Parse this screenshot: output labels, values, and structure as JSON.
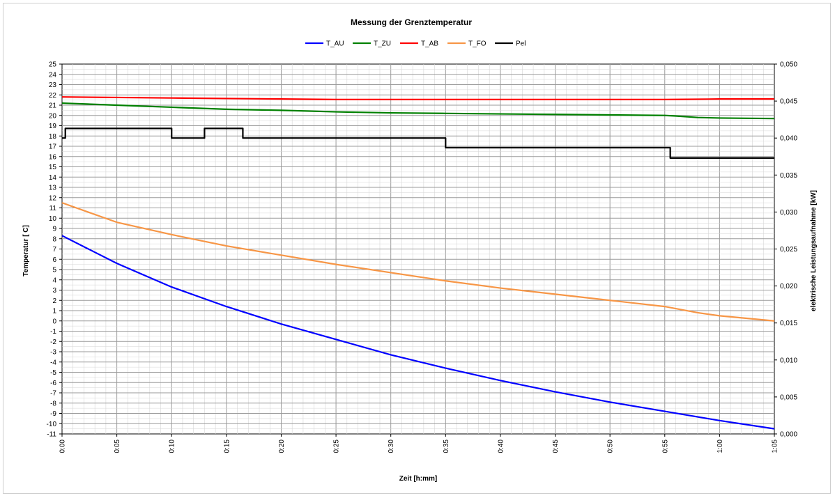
{
  "chart_data": {
    "type": "line",
    "title": "Messung der Grenztemperatur",
    "xlabel": "Zeit [h:mm]",
    "ylabel": "Temperatur [ C]",
    "y2label": "elektrische Leistungsaufnahme  [kW]",
    "xlim": [
      0,
      65
    ],
    "ylim": [
      -11,
      25
    ],
    "y2lim": [
      0,
      0.05
    ],
    "grid": true,
    "legend_position": "top",
    "x_tick_labels": [
      "0:00",
      "0:05",
      "0:10",
      "0:15",
      "0:20",
      "0:25",
      "0:30",
      "0:35",
      "0:40",
      "0:45",
      "0:50",
      "0:55",
      "1:00",
      "1:05"
    ],
    "y_tick_labels": [
      "25",
      "24",
      "23",
      "22",
      "21",
      "20",
      "19",
      "18",
      "17",
      "16",
      "15",
      "14",
      "13",
      "12",
      "11",
      "10",
      "9",
      "8",
      "7",
      "6",
      "5",
      "4",
      "3",
      "2",
      "1",
      "0",
      "-1",
      "-2",
      "-3",
      "-4",
      "-5",
      "-6",
      "-7",
      "-8",
      "-9",
      "-10",
      "-11"
    ],
    "y2_tick_labels": [
      "0,050",
      "0,045",
      "0,040",
      "0,035",
      "0,030",
      "0,025",
      "0,020",
      "0,015",
      "0,010",
      "0,005",
      "0,000"
    ],
    "series": [
      {
        "name": "T_AU",
        "axis": "left",
        "color": "#0000ff",
        "x": [
          0,
          5,
          10,
          15,
          20,
          25,
          30,
          35,
          40,
          45,
          50,
          55,
          60,
          65
        ],
        "y": [
          8.3,
          5.6,
          3.3,
          1.4,
          -0.3,
          -1.8,
          -3.3,
          -4.6,
          -5.8,
          -6.9,
          -7.9,
          -8.8,
          -9.7,
          -10.5
        ]
      },
      {
        "name": "T_ZU",
        "axis": "left",
        "color": "#008000",
        "x": [
          0,
          5,
          10,
          15,
          20,
          25,
          30,
          35,
          40,
          45,
          50,
          55,
          56,
          58,
          60,
          65
        ],
        "y": [
          21.2,
          21.0,
          20.8,
          20.6,
          20.5,
          20.35,
          20.25,
          20.2,
          20.15,
          20.1,
          20.05,
          20.0,
          19.95,
          19.8,
          19.75,
          19.7
        ]
      },
      {
        "name": "T_AB",
        "axis": "left",
        "color": "#ff0000",
        "x": [
          0,
          5,
          10,
          15,
          20,
          25,
          30,
          35,
          40,
          45,
          50,
          55,
          60,
          65
        ],
        "y": [
          21.8,
          21.75,
          21.7,
          21.65,
          21.6,
          21.55,
          21.55,
          21.55,
          21.55,
          21.55,
          21.55,
          21.55,
          21.6,
          21.6
        ]
      },
      {
        "name": "T_FO",
        "axis": "left",
        "color": "#f79646",
        "x": [
          0,
          5,
          10,
          15,
          20,
          25,
          30,
          35,
          40,
          45,
          50,
          55,
          56,
          58,
          60,
          65
        ],
        "y": [
          11.5,
          9.6,
          8.4,
          7.3,
          6.4,
          5.5,
          4.7,
          3.9,
          3.2,
          2.6,
          2.0,
          1.4,
          1.2,
          0.8,
          0.5,
          0.0
        ]
      },
      {
        "name": "Pel",
        "axis": "right",
        "color": "#000000",
        "x": [
          0,
          0.3,
          5,
          10,
          12.5,
          13,
          16,
          16.5,
          20,
          25,
          30,
          35,
          40,
          45,
          50,
          55,
          55.5,
          58,
          60,
          65
        ],
        "y": [
          0.04,
          0.0413,
          0.0413,
          0.04,
          0.04,
          0.0413,
          0.0413,
          0.04,
          0.04,
          0.04,
          0.04,
          0.0387,
          0.0387,
          0.0387,
          0.0387,
          0.0387,
          0.0373,
          0.0373,
          0.0373,
          0.0373
        ]
      }
    ]
  }
}
